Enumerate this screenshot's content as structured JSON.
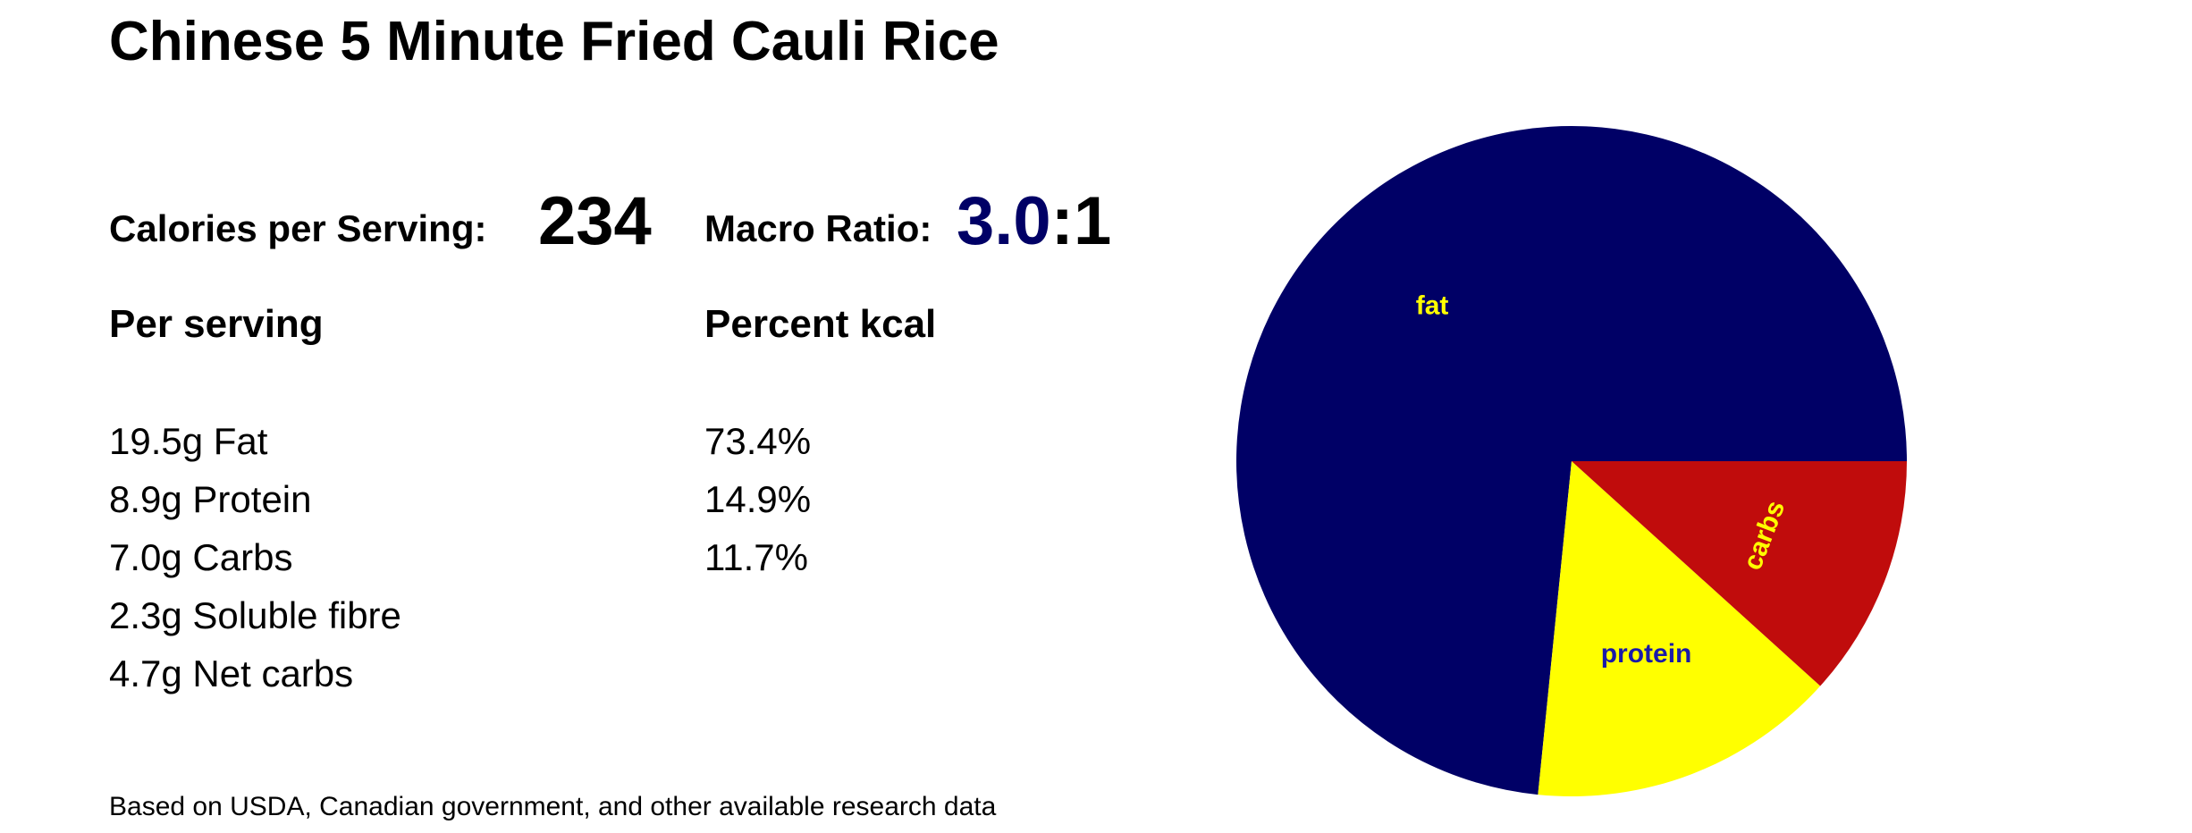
{
  "title": "Chinese 5 Minute Fried Cauli Rice",
  "calories": {
    "label": "Calories per Serving:",
    "value": "234"
  },
  "macro_ratio": {
    "label": "Macro Ratio:",
    "value": "3.0",
    "suffix": ":1"
  },
  "per_serving": {
    "heading": "Per serving",
    "items": [
      "19.5g Fat",
      "8.9g Protein",
      "7.0g Carbs",
      "2.3g Soluble fibre",
      "4.7g Net carbs"
    ]
  },
  "percent_kcal": {
    "heading": "Percent kcal",
    "items": [
      "73.4%",
      "14.9%",
      "11.7%"
    ]
  },
  "footnote": "Based on USDA, Canadian government, and other available research data",
  "colors": {
    "ratio_number": "#000066"
  },
  "chart_data": {
    "type": "pie",
    "slices": [
      {
        "name": "fat",
        "value": 73.4,
        "color": "#000066",
        "label_color": "#ffff00"
      },
      {
        "name": "protein",
        "value": 14.9,
        "color": "#ffff00",
        "label_color": "#1a1aa8"
      },
      {
        "name": "carbs",
        "value": 11.7,
        "color": "#c00c0c",
        "label_color": "#ffff00"
      }
    ]
  }
}
